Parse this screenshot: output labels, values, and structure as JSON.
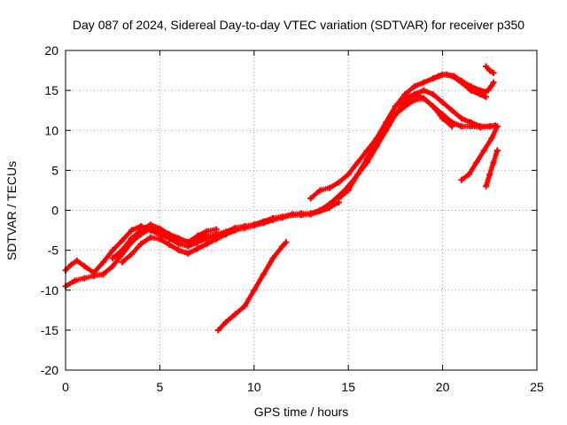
{
  "chart_data": {
    "type": "scatter",
    "title": "Day 087 of 2024, Sidereal Day-to-day VTEC variation (SDTVAR) for receiver p350",
    "xlabel": "GPS time / hours",
    "ylabel": "SDTVAR / TECUs",
    "xlim": [
      0,
      25
    ],
    "ylim": [
      -20,
      20
    ],
    "xticks": [
      0,
      5,
      10,
      15,
      20,
      25
    ],
    "yticks": [
      -20,
      -15,
      -10,
      -5,
      0,
      5,
      10,
      15,
      20
    ],
    "grid": true,
    "marker_color": "#ff0000",
    "series": [
      {
        "x": [
          0.0,
          0.3,
          0.6,
          1.0,
          1.5,
          2.0,
          2.5,
          3.0,
          3.5,
          4.0,
          4.5,
          5.0,
          5.5,
          6.0,
          6.5,
          7.0,
          7.5,
          8.0,
          8.5,
          9.0,
          9.5,
          10.0,
          10.5,
          11.0,
          11.5,
          12.0,
          12.5,
          13.0,
          13.5,
          14.0
        ],
        "y": [
          -7.5,
          -6.8,
          -6.3,
          -7.0,
          -7.8,
          -6.5,
          -5.0,
          -3.8,
          -2.5,
          -2.0,
          -2.5,
          -3.0,
          -3.5,
          -3.8,
          -4.0,
          -3.6,
          -3.2,
          -3.0,
          -2.7,
          -2.2,
          -2.0,
          -1.8,
          -1.4,
          -1.0,
          -0.8,
          -0.5,
          -0.4,
          -0.5,
          -0.1,
          0.3
        ]
      },
      {
        "x": [
          0.0,
          0.5,
          1.0,
          1.5,
          2.0,
          2.5,
          3.0,
          3.5,
          4.0,
          4.5,
          5.0,
          5.5,
          6.0,
          6.5,
          7.0,
          7.5,
          8.0,
          8.5,
          9.0,
          9.5,
          10.0,
          10.5,
          11.0,
          11.5,
          12.0,
          12.5,
          13.0,
          13.5,
          14.0,
          14.5
        ],
        "y": [
          -9.5,
          -8.8,
          -8.5,
          -8.2,
          -8.0,
          -7.0,
          -5.5,
          -4.0,
          -3.0,
          -2.3,
          -2.8,
          -3.5,
          -4.2,
          -4.5,
          -4.0,
          -3.5,
          -3.3,
          -3.0,
          -2.5,
          -2.2,
          -1.9,
          -1.6,
          -1.2,
          -0.9,
          -0.6,
          -0.6,
          -0.4,
          0.0,
          0.4,
          1.0
        ]
      },
      {
        "x": [
          2.5,
          3.0,
          3.5,
          4.0,
          4.5,
          5.0,
          5.5,
          6.0,
          6.5,
          7.0,
          7.5,
          8.0
        ],
        "y": [
          -6.0,
          -5.0,
          -3.5,
          -2.5,
          -1.8,
          -2.3,
          -3.0,
          -3.5,
          -4.0,
          -3.2,
          -2.6,
          -2.4
        ]
      },
      {
        "x": [
          3.0,
          3.5,
          4.0,
          4.5,
          5.0,
          5.5,
          6.0,
          6.5,
          7.0,
          7.5,
          8.0,
          8.5
        ],
        "y": [
          -6.5,
          -5.5,
          -4.2,
          -3.4,
          -3.6,
          -4.3,
          -5.0,
          -5.4,
          -4.8,
          -4.2,
          -3.6,
          -3.0
        ]
      },
      {
        "x": [
          13.0,
          13.5,
          14.0,
          14.5,
          15.0,
          15.5,
          16.0,
          16.5,
          17.0,
          17.5,
          18.0,
          18.5,
          19.0,
          19.5,
          20.0,
          20.5,
          21.0,
          21.5,
          22.0,
          22.3
        ],
        "y": [
          1.5,
          2.5,
          2.8,
          3.5,
          4.5,
          6.0,
          7.5,
          9.0,
          11.0,
          13.0,
          14.5,
          15.5,
          16.0,
          16.5,
          17.0,
          16.8,
          16.0,
          15.0,
          14.5,
          14.2
        ]
      },
      {
        "x": [
          13.5,
          14.0,
          14.5,
          15.0,
          15.5,
          16.0,
          16.5,
          17.0,
          17.5,
          18.0,
          18.5,
          19.0,
          19.5,
          20.0,
          20.5,
          21.0,
          21.5,
          22.0,
          22.5,
          22.8
        ],
        "y": [
          0.0,
          0.8,
          1.8,
          3.0,
          4.5,
          6.0,
          8.0,
          10.0,
          12.0,
          13.5,
          14.5,
          15.0,
          14.5,
          13.5,
          12.5,
          11.5,
          11.0,
          10.5,
          10.5,
          10.6
        ]
      },
      {
        "x": [
          14.5,
          15.0,
          15.5,
          16.0,
          16.5,
          17.0,
          17.5,
          18.0,
          18.5,
          19.0,
          19.5,
          20.0,
          20.5
        ],
        "y": [
          1.5,
          2.5,
          4.5,
          6.5,
          8.5,
          10.5,
          12.0,
          13.0,
          13.8,
          14.0,
          13.0,
          11.5,
          10.5
        ]
      },
      {
        "x": [
          17.5,
          18.0,
          18.5,
          19.0,
          19.5,
          20.0,
          20.5,
          21.0,
          21.5,
          22.0,
          22.5,
          22.8
        ],
        "y": [
          13.0,
          14.0,
          14.5,
          14.0,
          13.0,
          12.0,
          11.0,
          10.5,
          10.5,
          10.4,
          10.5,
          10.6
        ]
      },
      {
        "x": [
          19.5,
          19.8,
          20.2,
          20.6,
          21.0,
          21.5,
          22.0,
          22.3
        ],
        "y": [
          16.5,
          16.8,
          17.0,
          16.8,
          16.2,
          15.5,
          15.0,
          14.8
        ]
      },
      {
        "x": [
          8.1,
          8.5,
          9.0,
          9.5,
          10.0,
          10.5,
          11.0,
          11.5,
          11.7
        ],
        "y": [
          -15.0,
          -14.0,
          -13.0,
          -12.0,
          -10.0,
          -8.0,
          -6.0,
          -4.5,
          -4.0
        ]
      },
      {
        "x": [
          21.0,
          21.4,
          21.8,
          22.2,
          22.6,
          22.9
        ],
        "y": [
          3.8,
          4.5,
          6.0,
          7.5,
          9.0,
          10.5
        ]
      },
      {
        "x": [
          22.3,
          22.5,
          22.7,
          22.9
        ],
        "y": [
          3.0,
          4.5,
          6.0,
          7.5
        ]
      },
      {
        "x": [
          22.3,
          22.5,
          22.7
        ],
        "y": [
          18.0,
          17.5,
          17.2
        ]
      },
      {
        "x": [
          22.4,
          22.6,
          22.7
        ],
        "y": [
          15.0,
          15.6,
          16.0
        ]
      }
    ]
  }
}
